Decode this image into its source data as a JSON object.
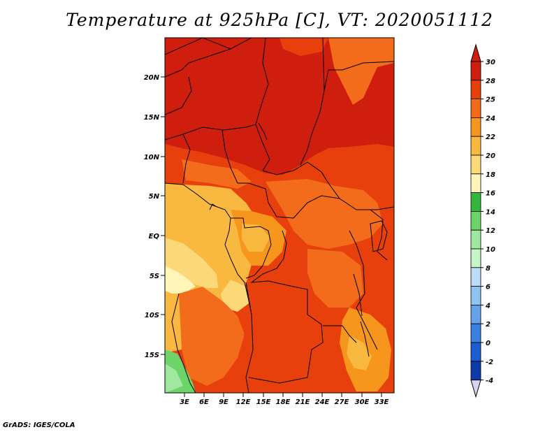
{
  "title": "Temperature at 925hPa [C], VT: 2020051112",
  "credit": "GrADS: IGES/COLA",
  "lat_labels": [
    "20N",
    "15N",
    "10N",
    "5N",
    "EQ",
    "5S",
    "10S",
    "15S"
  ],
  "lon_labels": [
    "3E",
    "6E",
    "9E",
    "12E",
    "15E",
    "18E",
    "21E",
    "24E",
    "27E",
    "30E",
    "33E"
  ],
  "colorbar": {
    "levels": [
      "30",
      "28",
      "25",
      "24",
      "22",
      "20",
      "18",
      "16",
      "14",
      "12",
      "10",
      "8",
      "6",
      "4",
      "2",
      "0",
      "-2",
      "-4"
    ],
    "colors": [
      "#d01e0e",
      "#e8400c",
      "#f26c1c",
      "#f7961c",
      "#f9b840",
      "#fcd878",
      "#fff5b8",
      "#34b63a",
      "#6cd468",
      "#a0e8a0",
      "#c6f5c6",
      "#bcdcf8",
      "#90c2f2",
      "#64a2ea",
      "#3a80de",
      "#1a5ed0",
      "#0c3aa8",
      "#061480"
    ]
  }
}
